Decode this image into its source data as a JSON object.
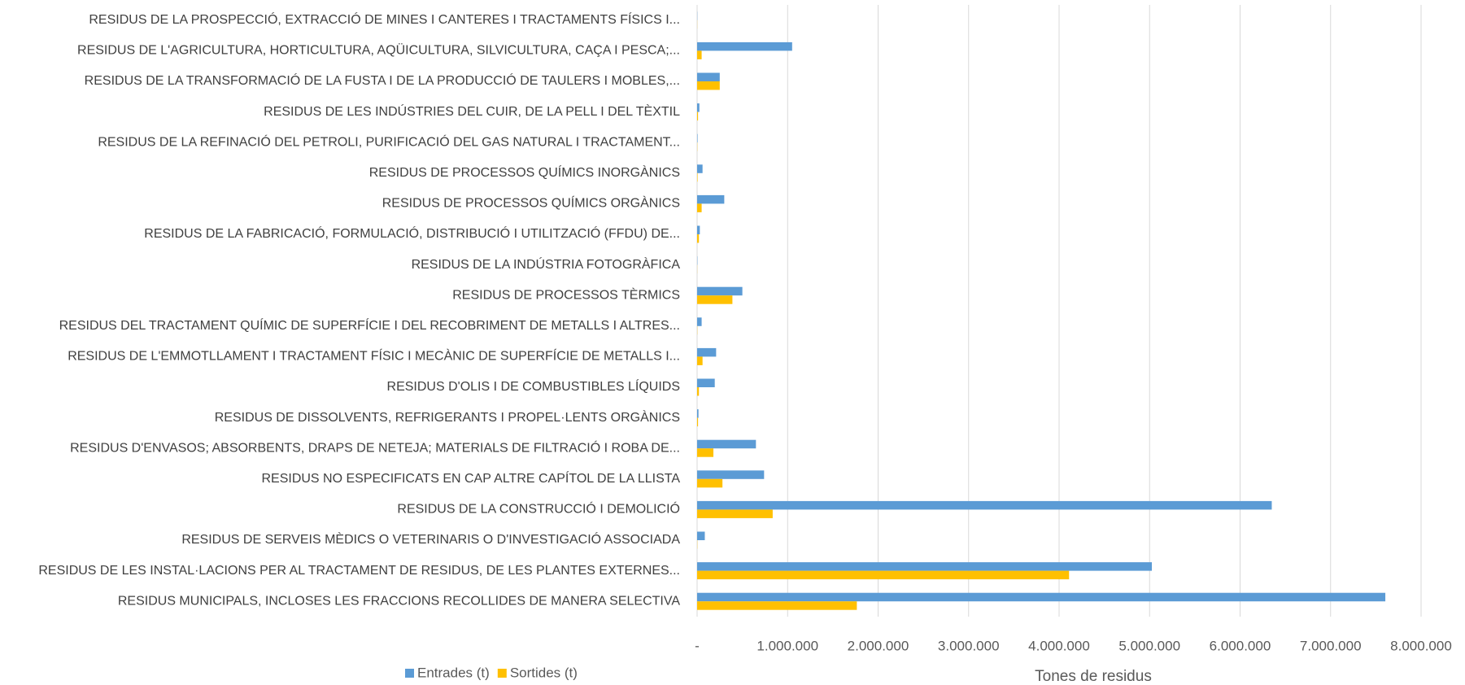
{
  "chart_data": {
    "type": "barh",
    "categories": [
      "RESIDUS DE LA PROSPECCIÓ, EXTRACCIÓ DE MINES I CANTERES I TRACTAMENTS FÍSICS I...",
      "RESIDUS DE L'AGRICULTURA, HORTICULTURA, AQÜICULTURA, SILVICULTURA, CAÇA I PESCA;...",
      "RESIDUS DE LA TRANSFORMACIÓ DE LA FUSTA I DE LA PRODUCCIÓ DE TAULERS I MOBLES,...",
      "RESIDUS DE LES INDÚSTRIES DEL CUIR, DE LA PELL I DEL TÈXTIL",
      "RESIDUS DE LA REFINACIÓ DEL PETROLI, PURIFICACIÓ DEL GAS NATURAL I TRACTAMENT...",
      "RESIDUS DE PROCESSOS QUÍMICS INORGÀNICS",
      "RESIDUS DE PROCESSOS QUÍMICS ORGÀNICS",
      "RESIDUS DE LA FABRICACIÓ, FORMULACIÓ, DISTRIBUCIÓ I UTILITZACIÓ (FFDU) DE...",
      "RESIDUS DE LA INDÚSTRIA FOTOGRÀFICA",
      "RESIDUS DE PROCESSOS TÈRMICS",
      "RESIDUS DEL TRACTAMENT QUÍMIC DE SUPERFÍCIE I DEL RECOBRIMENT DE METALLS I ALTRES...",
      "RESIDUS DE L'EMMOTLLAMENT I TRACTAMENT FÍSIC I MECÀNIC DE SUPERFÍCIE DE METALLS I...",
      "RESIDUS D'OLIS I DE COMBUSTIBLES LÍQUIDS",
      "RESIDUS DE DISSOLVENTS, REFRIGERANTS I PROPEL·LENTS ORGÀNICS",
      "RESIDUS D'ENVASOS; ABSORBENTS, DRAPS DE NETEJA; MATERIALS DE FILTRACIÓ I ROBA DE...",
      "RESIDUS NO ESPECIFICATS EN CAP ALTRE CAPÍTOL DE LA LLISTA",
      "RESIDUS DE LA CONSTRUCCIÓ I DEMOLICIÓ",
      "RESIDUS DE SERVEIS MÈDICS O VETERINARIS O D'INVESTIGACIÓ ASSOCIADA",
      "RESIDUS DE LES INSTAL·LACIONS PER AL TRACTAMENT DE RESIDUS, DE LES PLANTES EXTERNES...",
      "RESIDUS MUNICIPALS, INCLOSES LES FRACCIONS RECOLLIDES DE MANERA SELECTIVA"
    ],
    "series": [
      {
        "name": "Entrades (t)",
        "color": "#5b9bd5",
        "values": [
          2000,
          1050000,
          250000,
          25000,
          5000,
          60000,
          300000,
          30000,
          3000,
          500000,
          50000,
          210000,
          195000,
          15000,
          650000,
          740000,
          6350000,
          85000,
          5025000,
          7605000
        ]
      },
      {
        "name": "Sortides (t)",
        "color": "#ffc000",
        "values": [
          1000,
          50000,
          250000,
          10000,
          2000,
          5000,
          50000,
          20000,
          1000,
          390000,
          2000,
          60000,
          20000,
          10000,
          180000,
          280000,
          835000,
          2000,
          4110000,
          1765000
        ]
      }
    ],
    "xlabel": "Tones de residus",
    "xlim": [
      0,
      8000000
    ],
    "xticks": [
      {
        "value": 0,
        "label": "-"
      },
      {
        "value": 1000000,
        "label": "1.000.000"
      },
      {
        "value": 2000000,
        "label": "2.000.000"
      },
      {
        "value": 3000000,
        "label": "3.000.000"
      },
      {
        "value": 4000000,
        "label": "4.000.000"
      },
      {
        "value": 5000000,
        "label": "5.000.000"
      },
      {
        "value": 6000000,
        "label": "6.000.000"
      },
      {
        "value": 7000000,
        "label": "7.000.000"
      },
      {
        "value": 8000000,
        "label": "8.000.000"
      }
    ],
    "grid": true
  }
}
